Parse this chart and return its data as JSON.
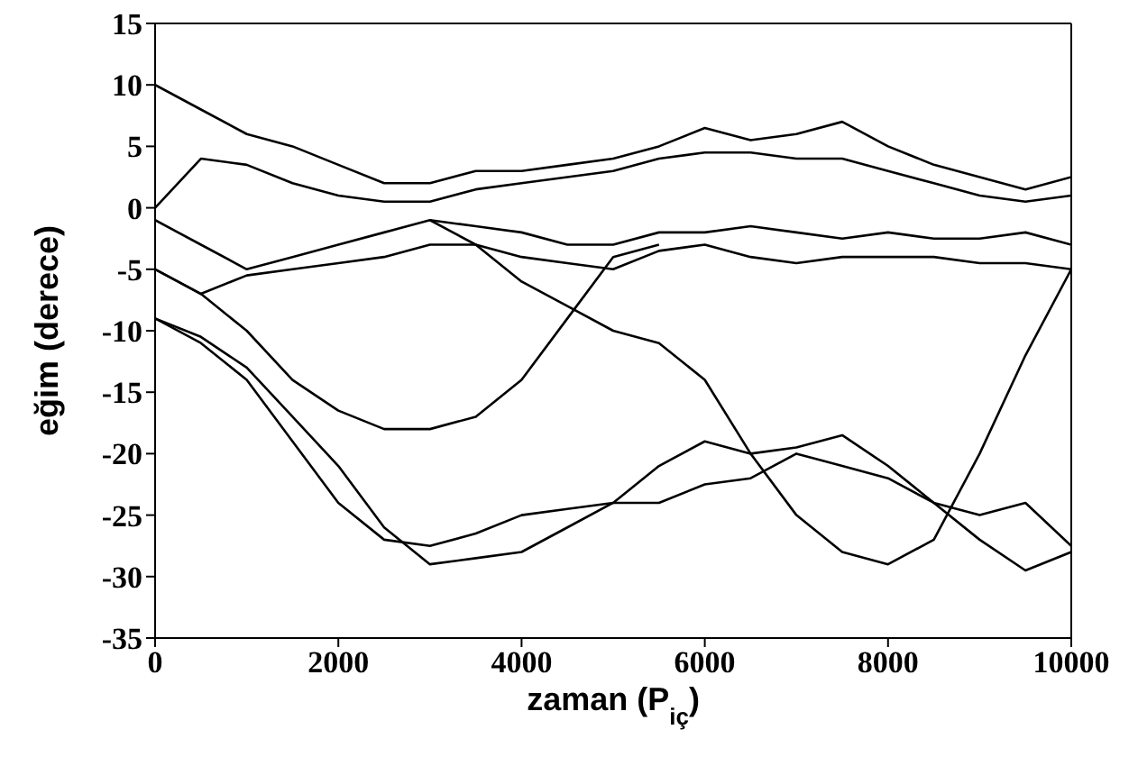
{
  "chart_data": {
    "type": "line",
    "xlabel": "zaman (P$_{iç}$)",
    "ylabel": "eğim (derece)",
    "x": [
      0,
      500,
      1000,
      1500,
      2000,
      2500,
      3000,
      3500,
      4000,
      4500,
      5000,
      5500,
      6000,
      6500,
      7000,
      7500,
      8000,
      8500,
      9000,
      9500,
      10000
    ],
    "series": [
      {
        "color": "#000000",
        "values": [
          10,
          8,
          6,
          5,
          3.5,
          2,
          2,
          3,
          3,
          3.5,
          4,
          5,
          6.5,
          5.5,
          6,
          7,
          5,
          3.5,
          2.5,
          1.5,
          2.5
        ]
      },
      {
        "color": "#000000",
        "values": [
          0,
          4,
          3.5,
          2,
          1,
          0.5,
          0.5,
          1.5,
          2,
          2.5,
          3,
          4,
          4.5,
          4.5,
          4,
          4,
          3,
          2,
          1,
          0.5,
          1
        ]
      },
      {
        "color": "#000000",
        "values": [
          -1,
          -3,
          -5,
          -4,
          -3,
          -2,
          -1,
          -1.5,
          -2,
          -3,
          -3,
          -2,
          -2,
          -1.5,
          -2,
          -2.5,
          -2,
          -2.5,
          -2.5,
          -2,
          -3
        ]
      },
      {
        "color": "#000000",
        "values": [
          -5,
          -7,
          -5.5,
          -5,
          -4.5,
          -4,
          -3,
          -3,
          -4,
          -4.5,
          -5,
          -3.5,
          -3,
          -4,
          -4.5,
          -4,
          -4,
          -4,
          -4.5,
          -4.5,
          -5
        ]
      },
      {
        "color": "#000000",
        "values": [
          -5,
          -7,
          -10,
          -14,
          -16.5,
          -18,
          -18,
          -17,
          -14,
          -9,
          -4,
          -3,
          null,
          null,
          null,
          null,
          null,
          null,
          null,
          null,
          null
        ]
      },
      {
        "color": "#000000",
        "values": [
          null,
          null,
          null,
          null,
          null,
          null,
          -1,
          -3,
          -6,
          -8,
          -10,
          -11,
          -14,
          -20,
          -25,
          -28,
          -29,
          -27,
          -20,
          -12,
          -5
        ]
      },
      {
        "color": "#000000",
        "values": [
          -9,
          -11,
          -14,
          -19,
          -24,
          -27,
          -27.5,
          -26.5,
          -25,
          -24.5,
          -24,
          -21,
          -19,
          -20,
          -19.5,
          -18.5,
          -21,
          -24,
          -25,
          -24,
          -27.5
        ]
      },
      {
        "color": "#000000",
        "values": [
          -9,
          -10.5,
          -13,
          -17,
          -21,
          -26,
          -29,
          -28.5,
          -28,
          -26,
          -24,
          -24,
          -22.5,
          -22,
          -20,
          -21,
          -22,
          -24,
          -27,
          -29.5,
          -28
        ]
      }
    ],
    "xlim": [
      0,
      10000
    ],
    "xticks": [
      0,
      2000,
      4000,
      6000,
      8000,
      10000
    ],
    "ylim": [
      -35,
      15
    ],
    "yticks": [
      -35,
      -30,
      -25,
      -20,
      -15,
      -10,
      -5,
      0,
      5,
      10,
      15
    ],
    "grid": false,
    "legend": false,
    "marker": "none",
    "line_style": "solid"
  }
}
